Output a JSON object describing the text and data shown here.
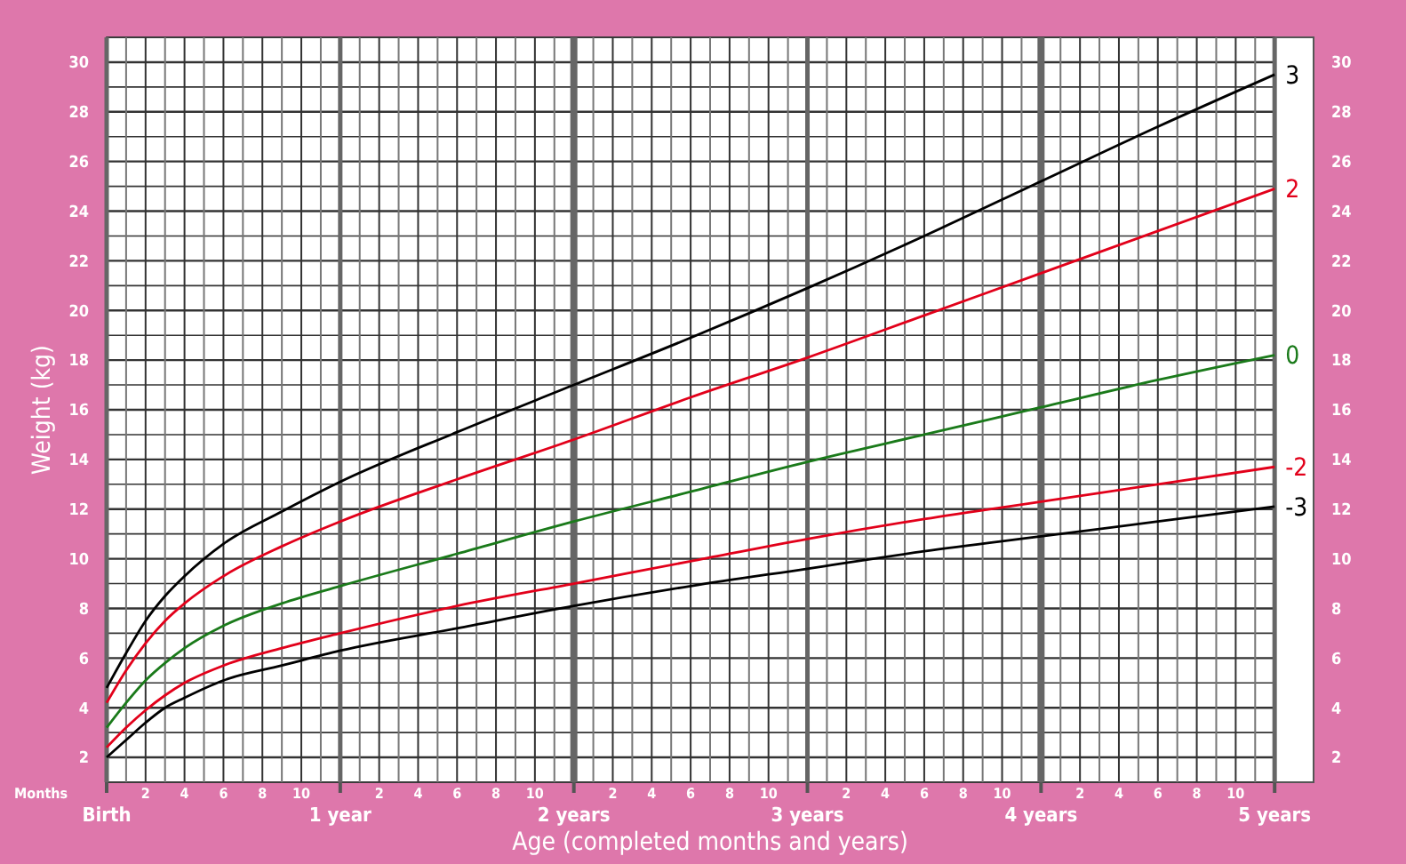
{
  "chart_data": {
    "type": "line",
    "xlabel": "Age (completed months and years)",
    "ylabel": "Weight (kg)",
    "x": [
      0,
      0.0833,
      0.1667,
      0.25,
      0.3333,
      0.5,
      0.75,
      1,
      1.5,
      2,
      2.5,
      3,
      3.5,
      4,
      4.5,
      5
    ],
    "series": [
      {
        "name": "3",
        "color": "#000000",
        "values": [
          4.8,
          6.2,
          7.5,
          8.5,
          9.3,
          10.6,
          11.9,
          13.1,
          15.1,
          17.0,
          18.9,
          20.9,
          23.0,
          25.2,
          27.4,
          29.5
        ]
      },
      {
        "name": "2",
        "color": "#e2001a",
        "values": [
          4.2,
          5.5,
          6.6,
          7.5,
          8.2,
          9.3,
          10.5,
          11.5,
          13.2,
          14.8,
          16.5,
          18.1,
          19.8,
          21.5,
          23.2,
          24.9
        ]
      },
      {
        "name": "0",
        "color": "#1a7a1a",
        "values": [
          3.2,
          4.2,
          5.1,
          5.8,
          6.4,
          7.3,
          8.2,
          8.9,
          10.2,
          11.5,
          12.7,
          13.9,
          15.0,
          16.1,
          17.2,
          18.2
        ]
      },
      {
        "name": "-2",
        "color": "#e2001a",
        "values": [
          2.4,
          3.2,
          3.9,
          4.5,
          5.0,
          5.7,
          6.4,
          7.0,
          8.1,
          9.0,
          9.9,
          10.8,
          11.6,
          12.3,
          13.0,
          13.7
        ]
      },
      {
        "name": "-3",
        "color": "#000000",
        "values": [
          2.0,
          2.7,
          3.4,
          4.0,
          4.4,
          5.1,
          5.7,
          6.3,
          7.2,
          8.1,
          8.9,
          9.6,
          10.3,
          10.9,
          11.5,
          12.1
        ]
      }
    ],
    "xlim": [
      0,
      5.1667
    ],
    "ylim": [
      1,
      31
    ],
    "xticks": [
      {
        "value": 0,
        "label": "Birth"
      },
      {
        "value": 1,
        "label": "1 year"
      },
      {
        "value": 2,
        "label": "2 years"
      },
      {
        "value": 3,
        "label": "3 years"
      },
      {
        "value": 4,
        "label": "4 years"
      },
      {
        "value": 5,
        "label": "5 years"
      }
    ],
    "yticks": [
      2,
      4,
      6,
      8,
      10,
      12,
      14,
      16,
      18,
      20,
      22,
      24,
      26,
      28,
      30
    ],
    "y2lim": [
      1,
      31
    ],
    "y2ticks": [
      2,
      4,
      6,
      8,
      10,
      12,
      14,
      16,
      18,
      20,
      22,
      24,
      26,
      28,
      30
    ],
    "annotations": [
      "Months",
      "2",
      "4",
      "6",
      "8",
      "10",
      "2",
      "4",
      "6",
      "8",
      "10",
      "2",
      "4",
      "6",
      "8",
      "10",
      "2",
      "4",
      "6",
      "8",
      "10",
      "2",
      "4",
      "6",
      "8",
      "10"
    ],
    "grid": true,
    "marker": "none",
    "line_style": "solid"
  }
}
